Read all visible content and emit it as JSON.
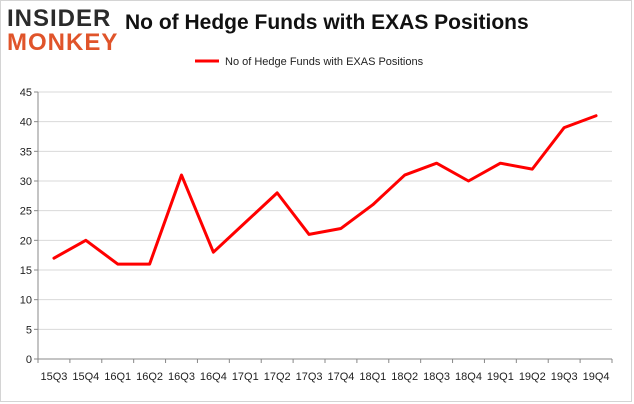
{
  "logo": {
    "line1": "INSIDER",
    "line2": "MONKEY"
  },
  "chart_data": {
    "type": "line",
    "title": "No of Hedge Funds with EXAS Positions",
    "categories": [
      "15Q3",
      "15Q4",
      "16Q1",
      "16Q2",
      "16Q3",
      "16Q4",
      "17Q1",
      "17Q2",
      "17Q3",
      "17Q4",
      "18Q1",
      "18Q2",
      "18Q3",
      "18Q4",
      "19Q1",
      "19Q2",
      "19Q3",
      "19Q4"
    ],
    "series": [
      {
        "name": "No of Hedge Funds with EXAS Positions",
        "values": [
          17,
          20,
          16,
          16,
          31,
          18,
          23,
          28,
          21,
          22,
          26,
          31,
          33,
          30,
          33,
          32,
          39,
          41
        ],
        "color": "#ff0000"
      }
    ],
    "ylim": [
      0,
      45
    ],
    "yticks": [
      0,
      5,
      10,
      15,
      20,
      25,
      30,
      35,
      40,
      45
    ],
    "grid": true,
    "legend": "top-center",
    "xlabel": "",
    "ylabel": ""
  }
}
